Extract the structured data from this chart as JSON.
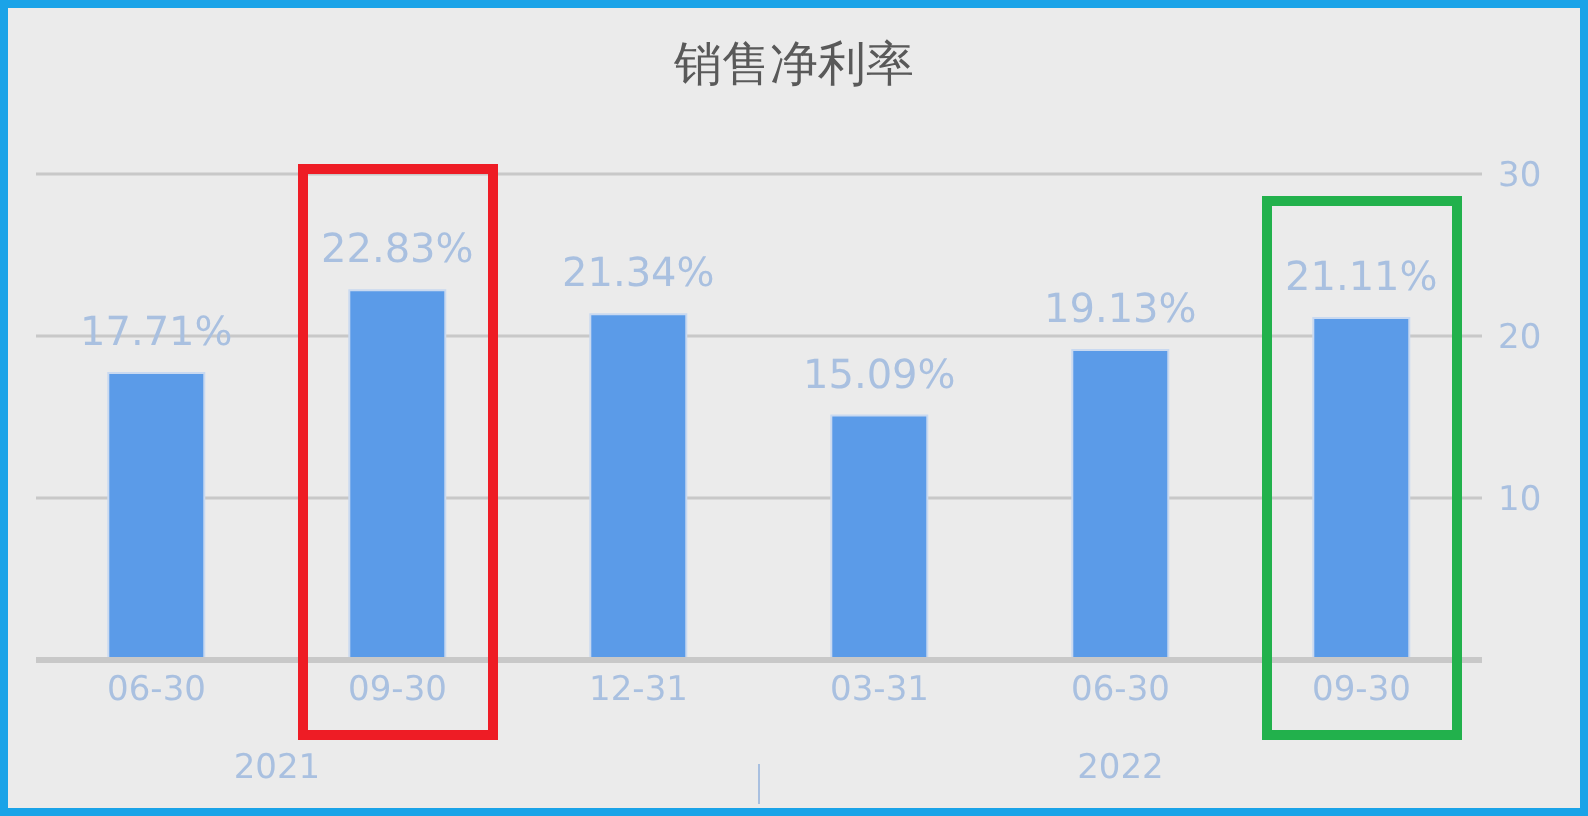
{
  "chart_data": {
    "type": "bar",
    "title": "销售净利率",
    "categories": [
      "06-30",
      "09-30",
      "12-31",
      "03-31",
      "06-30",
      "09-30"
    ],
    "values": [
      17.71,
      22.83,
      21.34,
      15.09,
      19.13,
      21.11
    ],
    "color": "#5b9be8",
    "value_labels": [
      "17.71%",
      "22.83%",
      "21.34%",
      "15.09%",
      "19.13%",
      "21.11%"
    ],
    "ylim": [
      0,
      30
    ],
    "yticks": [
      {
        "value": 0,
        "label": null
      },
      10,
      20,
      30
    ],
    "grid": "y",
    "annotations": [
      "2021",
      "2022"
    ]
  }
}
